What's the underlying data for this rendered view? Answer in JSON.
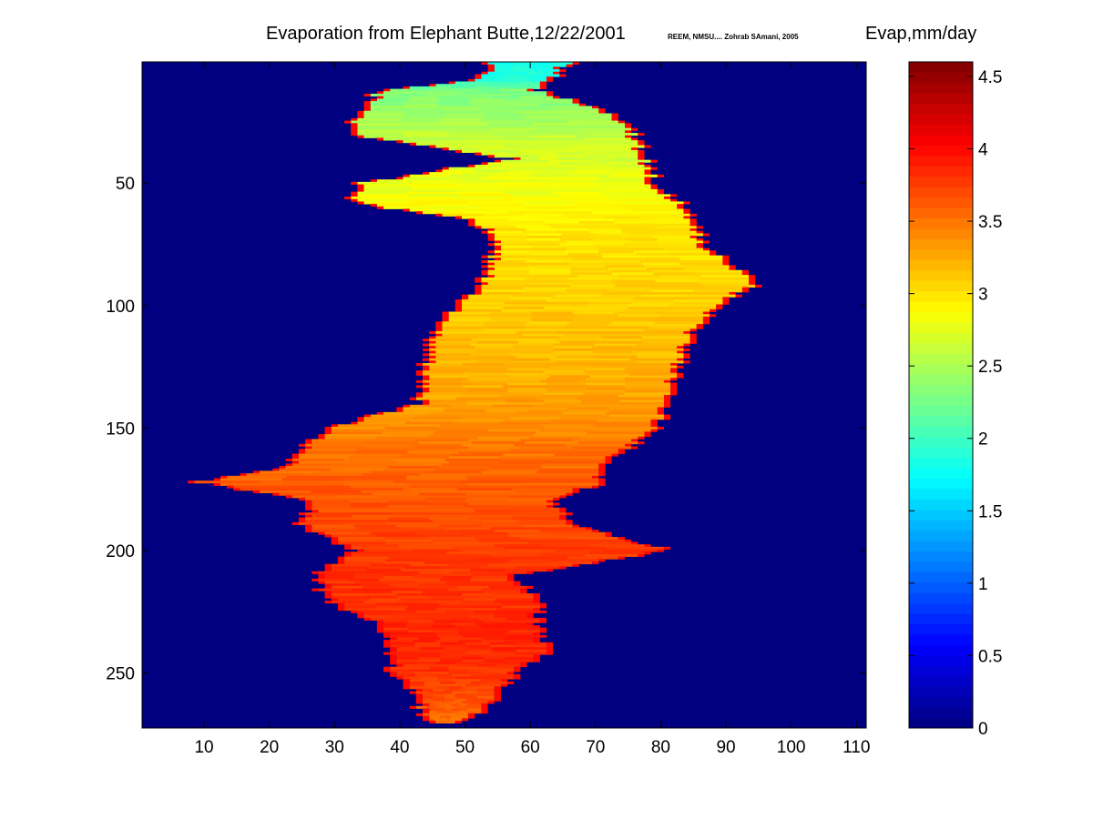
{
  "title": "Evaporation from Elephant Butte,12/22/2001",
  "credit": "REEM, NMSU.... Zohrab SAmani, 2005",
  "colorbar_label": "Evap,mm/day",
  "colors": {
    "background_water_zero": "#00007f",
    "colormap": "jet"
  },
  "chart_data": {
    "type": "heatmap",
    "title": "Evaporation from Elephant Butte,12/22/2001",
    "subtitle": "REEM, NMSU.... Zohrab SAmani, 2005",
    "colorbar_label": "Evap,mm/day",
    "colormap": "jet",
    "xlim": [
      0.5,
      111.5
    ],
    "ylim": [
      0.5,
      272.5
    ],
    "y_reversed": true,
    "x_ticks": [
      10,
      20,
      30,
      40,
      50,
      60,
      70,
      80,
      90,
      100,
      110
    ],
    "x_tick_labels": [
      "10",
      "20",
      "30",
      "40",
      "50",
      "60",
      "70",
      "80",
      "90",
      "100",
      "110"
    ],
    "y_ticks": [
      50,
      100,
      150,
      200,
      250
    ],
    "y_tick_labels": [
      "50",
      "100",
      "150",
      "200",
      "250"
    ],
    "clim": [
      0,
      4.6
    ],
    "colorbar_ticks": [
      0,
      0.5,
      1,
      1.5,
      2,
      2.5,
      3,
      3.5,
      4,
      4.5
    ],
    "colorbar_tick_labels": [
      "0",
      "0.5",
      "1",
      "1.5",
      "2",
      "2.5",
      "3",
      "3.5",
      "4",
      "4.5"
    ],
    "background_value": 0,
    "lake_profile": {
      "note": "per-row left/right column extent of non-zero pixels and typical evaporation value",
      "rows": [
        1,
        8,
        12,
        20,
        30,
        40,
        50,
        58,
        65,
        75,
        90,
        100,
        110,
        125,
        140,
        150,
        158,
        166,
        172,
        180,
        190,
        200,
        210,
        220,
        230,
        240,
        250,
        258,
        265,
        270
      ],
      "left": [
        55,
        52,
        38,
        35,
        33,
        58,
        35,
        34,
        52,
        56,
        54,
        50,
        46,
        45,
        44,
        30,
        26,
        24,
        10,
        28,
        26,
        34,
        28,
        30,
        38,
        40,
        40,
        44,
        44,
        46
      ],
      "right": [
        65,
        62,
        60,
        70,
        75,
        77,
        78,
        82,
        84,
        85,
        94,
        88,
        84,
        82,
        80,
        78,
        74,
        70,
        70,
        62,
        66,
        80,
        56,
        60,
        60,
        62,
        57,
        54,
        52,
        48
      ],
      "value": [
        1.8,
        1.9,
        2.3,
        2.4,
        2.6,
        2.7,
        2.8,
        2.85,
        2.95,
        3.0,
        3.05,
        3.1,
        3.15,
        3.2,
        3.3,
        3.4,
        3.5,
        3.55,
        3.6,
        3.65,
        3.7,
        3.75,
        3.8,
        3.8,
        3.85,
        3.85,
        3.8,
        3.7,
        3.6,
        3.5
      ]
    }
  }
}
